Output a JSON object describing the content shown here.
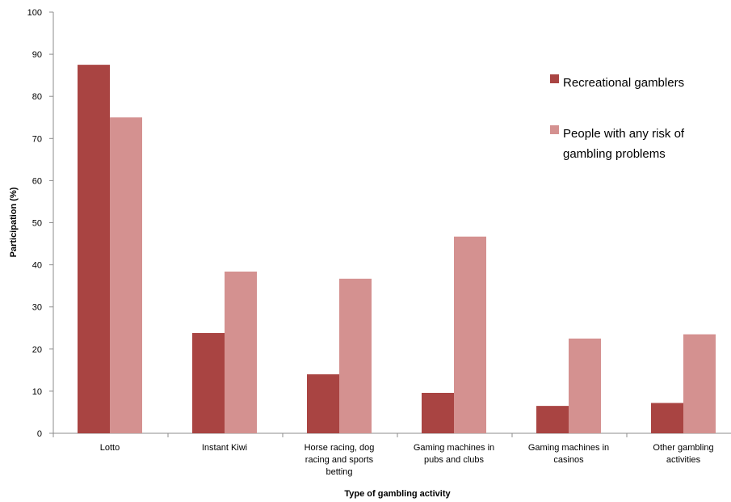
{
  "chart_data": {
    "type": "bar",
    "xlabel": "Type of gambling activity",
    "ylabel": "Participation (%)",
    "ylim": [
      0,
      100
    ],
    "yticks": [
      "0",
      "10",
      "20",
      "30",
      "40",
      "50",
      "60",
      "70",
      "80",
      "90",
      "100"
    ],
    "categories": [
      [
        "Lotto"
      ],
      [
        "Instant Kiwi"
      ],
      [
        "Horse racing, dog",
        "racing and sports",
        "betting"
      ],
      [
        "Gaming machines in",
        "pubs and clubs"
      ],
      [
        "Gaming machines in",
        "casinos"
      ],
      [
        "Other gambling",
        "activities"
      ]
    ],
    "series": [
      {
        "name": "Recreational gamblers",
        "color": "#a94442",
        "values": [
          87.5,
          23.8,
          14.0,
          9.6,
          6.5,
          7.2
        ]
      },
      {
        "name": [
          "People with any risk of",
          "gambling problems"
        ],
        "color": "#d49190",
        "values": [
          75.0,
          38.4,
          36.7,
          46.7,
          22.5,
          23.5
        ]
      }
    ],
    "legend_position": "top-right",
    "grid": false
  }
}
